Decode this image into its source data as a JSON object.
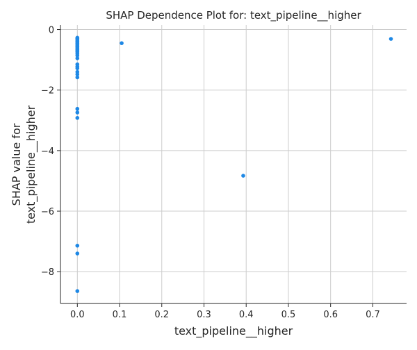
{
  "chart_data": {
    "type": "scatter",
    "title": "SHAP Dependence Plot for: text_pipeline__higher",
    "xlabel": "text_pipeline__higher",
    "ylabel_lines": [
      "SHAP value for",
      "text_pipeline__higher"
    ],
    "xlim": [
      -0.04,
      0.78
    ],
    "ylim": [
      -9.05,
      0.15
    ],
    "xticks": [
      0.0,
      0.1,
      0.2,
      0.3,
      0.4,
      0.5,
      0.6,
      0.7
    ],
    "xtick_labels": [
      "0.0",
      "0.1",
      "0.2",
      "0.3",
      "0.4",
      "0.5",
      "0.6",
      "0.7"
    ],
    "yticks": [
      0,
      -2,
      -4,
      -6,
      -8
    ],
    "ytick_labels": [
      "0",
      "−2",
      "−4",
      "−6",
      "−8"
    ],
    "grid": true,
    "point_color": "#1e88e5",
    "points": [
      {
        "x": 0.0,
        "y": -0.27
      },
      {
        "x": 0.0,
        "y": -0.3
      },
      {
        "x": 0.0,
        "y": -0.34
      },
      {
        "x": 0.0,
        "y": -0.38
      },
      {
        "x": 0.0,
        "y": -0.42
      },
      {
        "x": 0.0,
        "y": -0.46
      },
      {
        "x": 0.0,
        "y": -0.5
      },
      {
        "x": 0.0,
        "y": -0.54
      },
      {
        "x": 0.0,
        "y": -0.58
      },
      {
        "x": 0.0,
        "y": -0.62
      },
      {
        "x": 0.0,
        "y": -0.66
      },
      {
        "x": 0.0,
        "y": -0.7
      },
      {
        "x": 0.0,
        "y": -0.74
      },
      {
        "x": 0.0,
        "y": -0.8
      },
      {
        "x": 0.0,
        "y": -0.86
      },
      {
        "x": 0.0,
        "y": -0.95
      },
      {
        "x": 0.0,
        "y": -1.15
      },
      {
        "x": 0.0,
        "y": -1.22
      },
      {
        "x": 0.0,
        "y": -1.28
      },
      {
        "x": 0.0,
        "y": -1.4
      },
      {
        "x": 0.0,
        "y": -1.48
      },
      {
        "x": 0.0,
        "y": -1.58
      },
      {
        "x": 0.0,
        "y": -2.62
      },
      {
        "x": 0.0,
        "y": -2.74
      },
      {
        "x": 0.0,
        "y": -2.92
      },
      {
        "x": 0.0,
        "y": -7.14
      },
      {
        "x": 0.0,
        "y": -7.4
      },
      {
        "x": 0.0,
        "y": -8.64
      },
      {
        "x": 0.105,
        "y": -0.45
      },
      {
        "x": 0.393,
        "y": -4.83
      },
      {
        "x": 0.743,
        "y": -0.31
      }
    ]
  }
}
